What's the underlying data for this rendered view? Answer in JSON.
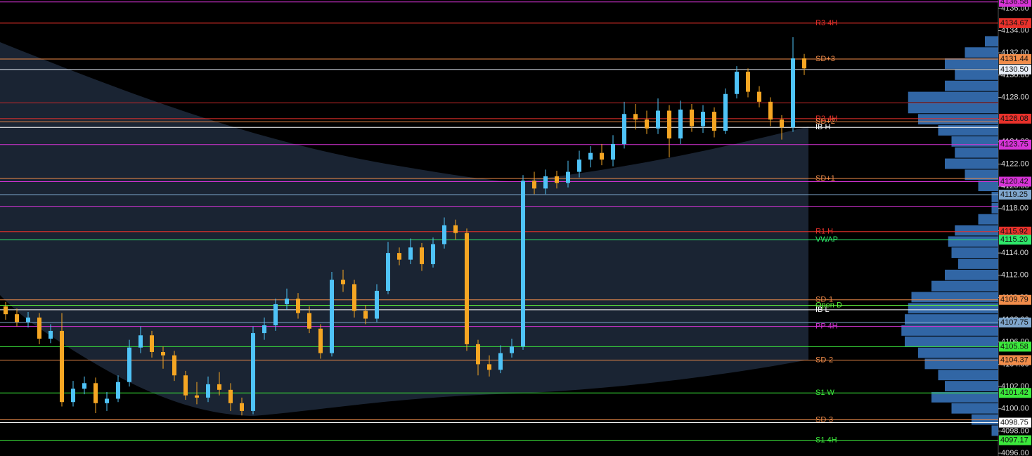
{
  "chart_data": {
    "type": "candlestick",
    "ylim": [
      4095.75,
      4136.75
    ],
    "yticks": [
      {
        "value": 4096,
        "label": "4096.00"
      },
      {
        "value": 4098,
        "label": "4098.00"
      },
      {
        "value": 4100,
        "label": "4100.00"
      },
      {
        "value": 4102,
        "label": "4102.00"
      },
      {
        "value": 4104,
        "label": "4104.00"
      },
      {
        "value": 4106,
        "label": "4106.00"
      },
      {
        "value": 4108,
        "label": "4108.00"
      },
      {
        "value": 4110,
        "label": "4110.00"
      },
      {
        "value": 4112,
        "label": "4112.00"
      },
      {
        "value": 4114,
        "label": "4114.00"
      },
      {
        "value": 4116,
        "label": "4116.00"
      },
      {
        "value": 4118,
        "label": "4118.00"
      },
      {
        "value": 4120,
        "label": "4120.00"
      },
      {
        "value": 4122,
        "label": "4122.00"
      },
      {
        "value": 4124,
        "label": "4124.00"
      },
      {
        "value": 4126,
        "label": "4126.00"
      },
      {
        "value": 4128,
        "label": "4128.00"
      },
      {
        "value": 4130,
        "label": "4130.00"
      },
      {
        "value": 4132,
        "label": "4132.00"
      },
      {
        "value": 4134,
        "label": "4134.00"
      },
      {
        "value": 4136,
        "label": "4136.00"
      }
    ],
    "up_color": "#4fc3f7",
    "down_color": "#f5a623",
    "open": [
      4109.2,
      4108.5,
      4107.8,
      4108.2,
      4106.3,
      4107.0,
      4100.6,
      4101.8,
      4102.3,
      4100.5,
      4100.9,
      4102.4,
      4105.5,
      4106.6,
      4105.1,
      4104.8,
      4103.0,
      4101.2,
      4101.0,
      4102.2,
      4101.7,
      4100.5,
      4099.8,
      4106.8,
      4107.5,
      4109.4,
      4109.9,
      4108.6,
      4107.2,
      4105.0,
      4111.6,
      4111.2,
      4108.8,
      4108.1,
      4110.6,
      4114.0,
      4113.4,
      4114.5,
      4113.0,
      4114.8,
      4116.5,
      4115.8,
      4105.8,
      4104.0,
      4103.5,
      4105.0,
      4105.6,
      4120.5,
      4119.8,
      4120.9,
      4120.3,
      4121.3,
      4122.4,
      4123.0,
      4122.4,
      4123.8,
      4126.5,
      4126.0,
      4125.2,
      4126.8,
      4124.3,
      4126.9,
      4125.4,
      4126.7,
      4125.0,
      4128.3,
      4130.3,
      4128.5,
      4127.6,
      4126.0,
      4125.3,
      4131.5
    ],
    "high": [
      4109.6,
      4109.0,
      4108.7,
      4108.6,
      4107.6,
      4108.6,
      4102.5,
      4102.9,
      4102.8,
      4101.5,
      4103.0,
      4106.2,
      4107.4,
      4107.0,
      4105.6,
      4105.2,
      4103.4,
      4102.4,
      4102.9,
      4103.3,
      4102.3,
      4101.0,
      4107.4,
      4108.2,
      4109.9,
      4110.8,
      4110.4,
      4109.2,
      4107.6,
      4112.3,
      4112.5,
      4111.6,
      4109.3,
      4111.2,
      4115.0,
      4114.5,
      4115.3,
      4114.9,
      4115.4,
      4117.2,
      4117.0,
      4116.2,
      4106.2,
      4104.8,
      4105.7,
      4106.3,
      4121.0,
      4121.3,
      4121.5,
      4121.4,
      4122.3,
      4123.2,
      4123.6,
      4123.8,
      4124.6,
      4127.6,
      4127.4,
      4126.8,
      4127.9,
      4127.3,
      4127.7,
      4127.4,
      4127.3,
      4127.1,
      4128.8,
      4130.8,
      4130.6,
      4129.0,
      4128.0,
      4126.4,
      4133.4,
      4131.9
    ],
    "low": [
      4108.0,
      4107.4,
      4107.3,
      4105.8,
      4105.9,
      4100.2,
      4100.2,
      4101.3,
      4099.6,
      4099.8,
      4100.6,
      4102.0,
      4105.0,
      4104.6,
      4103.6,
      4102.5,
      4100.8,
      4100.4,
      4100.6,
      4101.2,
      4099.8,
      4099.4,
      4099.5,
      4106.2,
      4107.0,
      4108.9,
      4108.1,
      4106.8,
      4104.5,
      4104.7,
      4110.5,
      4108.2,
      4107.6,
      4107.8,
      4110.3,
      4112.9,
      4113.0,
      4112.4,
      4112.7,
      4114.4,
      4115.2,
      4105.2,
      4103.0,
      4102.9,
      4103.2,
      4104.6,
      4105.3,
      4119.3,
      4119.3,
      4119.8,
      4119.9,
      4120.8,
      4121.7,
      4121.9,
      4121.8,
      4123.4,
      4125.1,
      4124.7,
      4124.7,
      4122.6,
      4123.8,
      4124.9,
      4124.8,
      4124.4,
      4124.7,
      4127.9,
      4128.0,
      4127.1,
      4125.4,
      4124.2,
      4124.9,
      4130.0
    ],
    "close": [
      4108.5,
      4107.8,
      4108.2,
      4106.3,
      4107.0,
      4100.6,
      4101.8,
      4102.3,
      4100.5,
      4100.9,
      4102.4,
      4105.5,
      4106.6,
      4105.1,
      4104.8,
      4103.0,
      4101.2,
      4101.0,
      4102.2,
      4101.7,
      4100.5,
      4099.8,
      4106.8,
      4107.5,
      4109.4,
      4109.9,
      4108.6,
      4107.2,
      4105.0,
      4111.6,
      4111.2,
      4108.8,
      4108.1,
      4110.6,
      4114.0,
      4113.4,
      4114.5,
      4113.0,
      4114.8,
      4116.5,
      4115.8,
      4105.8,
      4104.0,
      4103.5,
      4105.0,
      4105.6,
      4120.5,
      4119.8,
      4120.9,
      4120.3,
      4121.3,
      4122.4,
      4123.0,
      4122.4,
      4123.8,
      4126.5,
      4126.0,
      4125.2,
      4126.8,
      4124.3,
      4126.9,
      4125.4,
      4126.7,
      4125.0,
      4128.3,
      4130.3,
      4128.5,
      4127.6,
      4126.0,
      4125.3,
      4131.5,
      4130.6
    ],
    "levels": [
      {
        "value": 4136.58,
        "tag": "4136.58",
        "color": "#d633d6"
      },
      {
        "name": "R3 4H",
        "value": 4134.67,
        "tag": "4134.67",
        "color": "#e8312b"
      },
      {
        "name": "SD+3",
        "value": 4131.44,
        "tag": "4131.44",
        "color": "#f08c4a"
      },
      {
        "value": 4130.5,
        "tag": "4130.50",
        "color": "#e6ecf5"
      },
      {
        "value": 4127.5,
        "color": "#c8282a"
      },
      {
        "name": "R2 4H",
        "value": 4126.08,
        "tag": "4126.08",
        "color": "#e8312b"
      },
      {
        "name": "SD+2",
        "value": 4125.8,
        "color": "#f08c4a"
      },
      {
        "name": "IB H",
        "value": 4125.3,
        "color": "#ffffff"
      },
      {
        "value": 4123.75,
        "tag": "4123.75",
        "color": "#d633d6"
      },
      {
        "name": "SD+1",
        "value": 4120.7,
        "color": "#f08c4a"
      },
      {
        "value": 4120.42,
        "tag": "4120.42",
        "color": "#d633d6"
      },
      {
        "value": 4119.25,
        "tag": "4119.25",
        "color": "#7fa6cc"
      },
      {
        "value": 4118.2,
        "color": "#d633d6"
      },
      {
        "name": "R1 H",
        "value": 4115.92,
        "tag": "4115.92",
        "color": "#e8312b"
      },
      {
        "name": "VWAP",
        "value": 4115.2,
        "tag": "4115.20",
        "color": "#2ee86a"
      },
      {
        "name": "SD-1",
        "value": 4109.79,
        "tag": "4109.79",
        "color": "#f08c4a"
      },
      {
        "name": "Open D",
        "value": 4109.3,
        "color": "#5ef03a"
      },
      {
        "name": "IB L",
        "value": 4108.9,
        "color": "#ffffff"
      },
      {
        "value": 4107.75,
        "tag": "4107.75",
        "color": "#7fa6cc"
      },
      {
        "name": "PP 4H",
        "value": 4107.4,
        "color": "#d633d6"
      },
      {
        "value": 4105.58,
        "tag": "4105.58",
        "color": "#3be83b"
      },
      {
        "name": "SD-2",
        "value": 4104.37,
        "tag": "4104.37",
        "color": "#f08c4a"
      },
      {
        "name": "S1 W",
        "value": 4101.42,
        "tag": "4101.42",
        "color": "#3be83b"
      },
      {
        "name": "SD-3",
        "value": 4099.0,
        "color": "#f08c4a"
      },
      {
        "value": 4098.75,
        "tag": "4098.75",
        "color": "#ffffff"
      },
      {
        "name": "S1 4H",
        "value": 4097.17,
        "tag": "4097.17",
        "color": "#3be83b"
      }
    ],
    "volume_profile": {
      "color": "#3a78c2",
      "prices": [
        4133,
        4132,
        4131,
        4130,
        4129,
        4128,
        4127,
        4126,
        4125,
        4124,
        4123,
        4122,
        4121,
        4120,
        4119,
        4118,
        4117,
        4116,
        4115,
        4114,
        4113,
        4112,
        4111,
        4110,
        4109,
        4108,
        4107,
        4106,
        4105,
        4104,
        4103,
        4102,
        4101,
        4100,
        4099,
        4098
      ],
      "values": [
        20,
        50,
        80,
        65,
        80,
        135,
        135,
        120,
        90,
        70,
        65,
        80,
        50,
        30,
        10,
        10,
        30,
        65,
        75,
        70,
        60,
        80,
        100,
        130,
        135,
        140,
        145,
        140,
        120,
        110,
        90,
        80,
        100,
        70,
        40,
        10
      ]
    }
  }
}
